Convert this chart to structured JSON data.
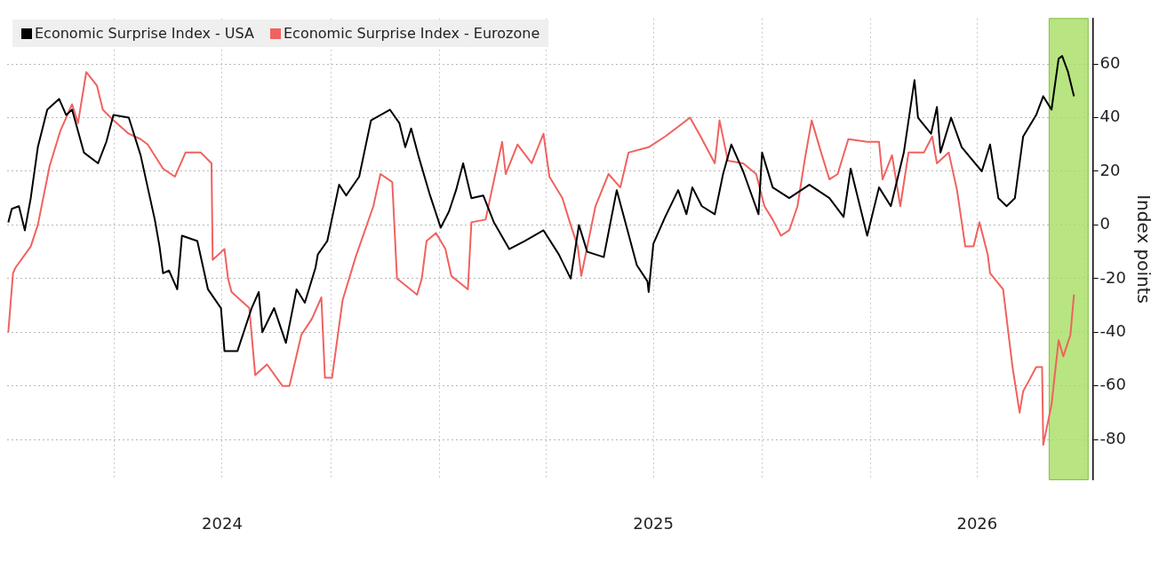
{
  "chart_data": {
    "type": "line",
    "ylabel": "Index points",
    "xlim": [
      "2024-01-01",
      "2026-07-08"
    ],
    "ylim": [
      -95,
      77
    ],
    "xticks": [
      {
        "value": "2024-04-01",
        "label": null
      },
      {
        "value": "2024-07-01",
        "label": "2024"
      },
      {
        "value": "2024-10-01",
        "label": null
      },
      {
        "value": "2025-01-01",
        "label": null
      },
      {
        "value": "2025-04-01",
        "label": null
      },
      {
        "value": "2025-07-01",
        "label": "2025"
      },
      {
        "value": "2025-10-01",
        "label": null
      },
      {
        "value": "2026-01-01",
        "label": null
      },
      {
        "value": "2026-04-01",
        "label": "2026"
      },
      {
        "value": "2026-07-01",
        "label": null
      }
    ],
    "yticks": [
      -80,
      -60,
      -40,
      -20,
      0,
      20,
      40,
      60
    ],
    "grid": true,
    "legend": "top left",
    "bands": [
      {
        "axis": "x",
        "from": "2026-06-01",
        "to": "2026-07-04",
        "color": "#a6dd62"
      }
    ],
    "series": [
      {
        "name": "Economic Surprise Index - USA",
        "color": "#000000",
        "x": [
          "2024-01-02",
          "2024-01-05",
          "2024-01-11",
          "2024-01-16",
          "2024-01-21",
          "2024-01-27",
          "2024-02-04",
          "2024-02-14",
          "2024-02-20",
          "2024-02-25",
          "2024-03-06",
          "2024-03-18",
          "2024-03-25",
          "2024-03-31",
          "2024-04-13",
          "2024-04-23",
          "2024-05-05",
          "2024-05-09",
          "2024-05-12",
          "2024-05-17",
          "2024-05-24",
          "2024-05-28",
          "2024-06-10",
          "2024-06-17",
          "2024-06-19",
          "2024-06-30",
          "2024-07-03",
          "2024-07-14",
          "2024-07-26",
          "2024-08-01",
          "2024-08-04",
          "2024-08-14",
          "2024-08-24",
          "2024-09-02",
          "2024-09-09",
          "2024-09-18",
          "2024-09-20",
          "2024-09-28",
          "2024-10-08",
          "2024-10-14",
          "2024-10-25",
          "2024-11-04",
          "2024-11-20",
          "2024-11-28",
          "2024-12-03",
          "2024-12-08",
          "2024-12-14",
          "2024-12-24",
          "2025-01-02",
          "2025-01-09",
          "2025-01-15",
          "2025-01-21",
          "2025-01-28",
          "2025-02-07",
          "2025-02-16",
          "2025-03-01",
          "2025-03-14",
          "2025-03-30",
          "2025-04-12",
          "2025-04-22",
          "2025-04-29",
          "2025-05-06",
          "2025-05-20",
          "2025-05-31",
          "2025-06-17",
          "2025-06-26",
          "2025-06-27",
          "2025-07-01",
          "2025-07-11",
          "2025-07-22",
          "2025-07-29",
          "2025-08-03",
          "2025-08-11",
          "2025-08-22",
          "2025-08-29",
          "2025-09-05",
          "2025-09-15",
          "2025-09-28",
          "2025-10-01",
          "2025-10-10",
          "2025-10-24",
          "2025-11-10",
          "2025-11-27",
          "2025-12-09",
          "2025-12-15",
          "2025-12-29",
          "2026-01-08",
          "2026-01-18",
          "2026-01-29",
          "2026-02-07",
          "2026-02-10",
          "2026-02-21",
          "2026-02-26",
          "2026-03-01",
          "2026-03-10",
          "2026-03-19",
          "2026-04-05",
          "2026-04-12",
          "2026-04-19",
          "2026-04-26",
          "2026-05-03",
          "2026-05-10",
          "2026-05-21",
          "2026-05-27",
          "2026-06-03",
          "2026-06-09",
          "2026-06-12",
          "2026-06-17",
          "2026-06-22"
        ],
        "values": [
          1,
          6,
          7,
          -2,
          10,
          29,
          43,
          47,
          41,
          43,
          27,
          23,
          31,
          41,
          40,
          26,
          2,
          -8,
          -18,
          -17,
          -24,
          -4,
          -6,
          -20,
          -24,
          -31,
          -47,
          -47,
          -31,
          -25,
          -40,
          -31,
          -44,
          -24,
          -29,
          -16,
          -11,
          -6,
          15,
          11,
          18,
          39,
          43,
          38,
          29,
          36,
          26,
          11,
          -1,
          5,
          13,
          23,
          10,
          11,
          1,
          -9,
          -6,
          -2,
          -11,
          -20,
          0,
          -10,
          -12,
          13,
          -15,
          -21,
          -25,
          -7,
          3,
          13,
          4,
          14,
          7,
          4,
          19,
          30,
          20,
          4,
          27,
          14,
          10,
          15,
          10,
          3,
          21,
          -4,
          14,
          7,
          27,
          54,
          40,
          34,
          44,
          27,
          40,
          29,
          20,
          30,
          10,
          7,
          10,
          33,
          41,
          48,
          43,
          62,
          63,
          57,
          48
        ]
      },
      {
        "name": "Economic Surprise Index - Eurozone",
        "color": "#f0625f",
        "x": [
          "2024-01-02",
          "2024-01-06",
          "2024-01-08",
          "2024-01-21",
          "2024-01-27",
          "2024-02-06",
          "2024-02-15",
          "2024-02-25",
          "2024-03-01",
          "2024-03-08",
          "2024-03-17",
          "2024-03-22",
          "2024-03-31",
          "2024-04-13",
          "2024-04-23",
          "2024-04-29",
          "2024-05-12",
          "2024-05-22",
          "2024-05-31",
          "2024-06-13",
          "2024-06-22",
          "2024-06-23",
          "2024-07-03",
          "2024-07-06",
          "2024-07-09",
          "2024-07-24",
          "2024-07-29",
          "2024-08-08",
          "2024-08-21",
          "2024-08-27",
          "2024-09-06",
          "2024-09-15",
          "2024-09-23",
          "2024-09-26",
          "2024-10-02",
          "2024-10-11",
          "2024-10-22",
          "2024-11-06",
          "2024-11-12",
          "2024-11-22",
          "2024-11-26",
          "2024-12-13",
          "2024-12-17",
          "2024-12-21",
          "2024-12-29",
          "2025-01-06",
          "2025-01-11",
          "2025-01-25",
          "2025-01-28",
          "2025-02-09",
          "2025-02-23",
          "2025-02-26",
          "2025-03-08",
          "2025-03-20",
          "2025-03-30",
          "2025-04-04",
          "2025-04-15",
          "2025-04-22",
          "2025-04-28",
          "2025-05-01",
          "2025-05-13",
          "2025-05-24",
          "2025-06-03",
          "2025-06-10",
          "2025-06-27",
          "2025-07-11",
          "2025-08-01",
          "2025-08-10",
          "2025-08-22",
          "2025-08-26",
          "2025-09-02",
          "2025-09-15",
          "2025-09-26",
          "2025-10-03",
          "2025-10-10",
          "2025-10-17",
          "2025-10-24",
          "2025-10-31",
          "2025-11-06",
          "2025-11-12",
          "2025-11-20",
          "2025-11-27",
          "2025-12-04",
          "2025-12-13",
          "2025-12-29",
          "2026-01-08",
          "2026-01-11",
          "2026-01-19",
          "2026-01-26",
          "2026-02-02",
          "2026-02-15",
          "2026-02-22",
          "2026-02-26",
          "2026-03-08",
          "2026-03-15",
          "2026-03-22",
          "2026-03-29",
          "2026-04-03",
          "2026-04-10",
          "2026-04-12",
          "2026-04-23",
          "2026-05-01",
          "2026-05-07",
          "2026-05-10",
          "2026-05-15",
          "2026-05-21",
          "2026-05-26",
          "2026-05-27",
          "2026-06-03",
          "2026-06-09",
          "2026-06-13",
          "2026-06-19",
          "2026-06-22"
        ],
        "values": [
          -40,
          -18,
          -16,
          -8,
          0,
          22,
          35,
          45,
          38,
          57,
          52,
          43,
          39,
          34,
          32,
          30,
          21,
          18,
          27,
          27,
          23,
          -13,
          -9,
          -20,
          -25,
          -31,
          -56,
          -52,
          -60,
          -60,
          -41,
          -35,
          -27,
          -57,
          -57,
          -28,
          -12,
          7,
          19,
          16,
          -20,
          -26,
          -20,
          -6,
          -3,
          -9,
          -19,
          -24,
          1,
          2,
          31,
          19,
          30,
          23,
          34,
          18,
          10,
          0,
          -8,
          -19,
          7,
          19,
          14,
          27,
          29,
          33,
          40,
          33,
          23,
          39,
          24,
          23,
          19,
          7,
          2,
          -4,
          -2,
          7,
          24,
          39,
          27,
          17,
          19,
          32,
          31,
          31,
          17,
          26,
          7,
          27,
          27,
          33,
          23,
          27,
          13,
          -8,
          -8,
          1,
          -11,
          -18,
          -24,
          -53,
          -70,
          -62,
          -58,
          -53,
          -53,
          -82,
          -67,
          -43,
          -49,
          -41,
          -26
        ]
      }
    ]
  }
}
